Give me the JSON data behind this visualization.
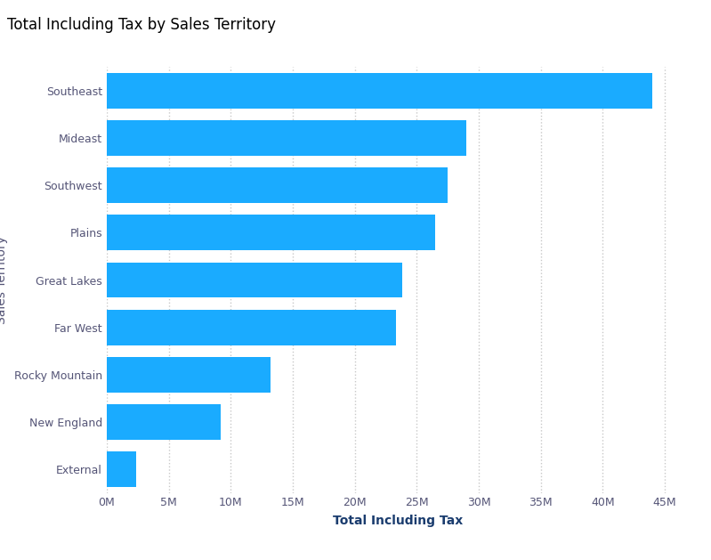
{
  "title": "Total Including Tax by Sales Territory",
  "categories": [
    "Southeast",
    "Mideast",
    "Southwest",
    "Plains",
    "Great Lakes",
    "Far West",
    "Rocky Mountain",
    "New England",
    "External"
  ],
  "values": [
    44000000,
    29000000,
    27500000,
    26500000,
    23800000,
    23300000,
    13200000,
    9200000,
    2400000
  ],
  "bar_color": "#1aabff",
  "xlabel": "Total Including Tax",
  "ylabel": "Sales Territory",
  "xlim": [
    0,
    47000000
  ],
  "xtick_step": 5000000,
  "background_color": "#ffffff",
  "title_fontsize": 12,
  "axis_label_fontsize": 10,
  "tick_fontsize": 9,
  "grid_color": "#c8c8c8",
  "bar_height": 0.75,
  "label_color": "#555577",
  "xlabel_color": "#1a3c6e",
  "ylabel_color": "#555577"
}
